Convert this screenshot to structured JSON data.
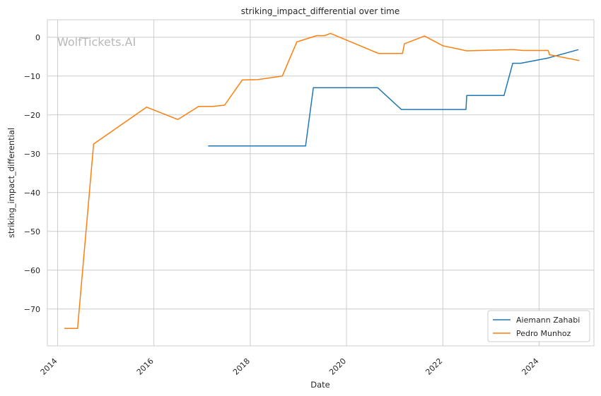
{
  "chart_data": {
    "type": "line",
    "title": "striking_impact_differential over time",
    "xlabel": "Date",
    "ylabel": "striking_impact_differential",
    "watermark": "WolfTickets.AI",
    "xlim": [
      "2013-10-15",
      "2025-02-20"
    ],
    "ylim": [
      -79.5,
      4.5
    ],
    "x_ticks": [
      {
        "date": "2014-01-01",
        "label": "2014"
      },
      {
        "date": "2016-01-01",
        "label": "2016"
      },
      {
        "date": "2018-01-01",
        "label": "2018"
      },
      {
        "date": "2020-01-01",
        "label": "2020"
      },
      {
        "date": "2022-01-01",
        "label": "2022"
      },
      {
        "date": "2024-01-01",
        "label": "2024"
      }
    ],
    "y_ticks": [
      {
        "value": 0,
        "label": "0"
      },
      {
        "value": -10,
        "label": "−10"
      },
      {
        "value": -20,
        "label": "−20"
      },
      {
        "value": -30,
        "label": "−30"
      },
      {
        "value": -40,
        "label": "−40"
      },
      {
        "value": -50,
        "label": "−50"
      },
      {
        "value": -60,
        "label": "−60"
      },
      {
        "value": -70,
        "label": "−70"
      }
    ],
    "grid": true,
    "legend_position": "bottom-right",
    "series": [
      {
        "name": "Aiemann Zahabi",
        "color": "#1f77b4",
        "points": [
          [
            "2017-02-15",
            -28.0
          ],
          [
            "2019-02-25",
            -28.0
          ],
          [
            "2019-04-25",
            -13.0
          ],
          [
            "2020-08-25",
            -13.0
          ],
          [
            "2021-02-20",
            -18.6
          ],
          [
            "2022-06-25",
            -18.6
          ],
          [
            "2022-07-01",
            -15.0
          ],
          [
            "2023-04-10",
            -15.0
          ],
          [
            "2023-06-15",
            -6.7
          ],
          [
            "2023-08-15",
            -6.7
          ],
          [
            "2024-03-05",
            -5.4
          ],
          [
            "2024-10-25",
            -3.2
          ]
        ]
      },
      {
        "name": "Pedro Munhoz",
        "color": "#ff7f0e",
        "points": [
          [
            "2014-02-20",
            -75.0
          ],
          [
            "2014-06-01",
            -75.0
          ],
          [
            "2014-10-01",
            -27.5
          ],
          [
            "2015-11-07",
            -18.0
          ],
          [
            "2016-07-01",
            -21.2
          ],
          [
            "2016-12-05",
            -17.8
          ],
          [
            "2017-03-20",
            -17.8
          ],
          [
            "2017-06-20",
            -17.5
          ],
          [
            "2017-11-01",
            -11.0
          ],
          [
            "2018-03-01",
            -10.9
          ],
          [
            "2018-09-01",
            -10.0
          ],
          [
            "2018-12-20",
            -1.2
          ],
          [
            "2019-05-20",
            0.4
          ],
          [
            "2019-07-20",
            0.4
          ],
          [
            "2019-09-01",
            1.0
          ],
          [
            "2020-09-01",
            -4.2
          ],
          [
            "2021-03-01",
            -4.2
          ],
          [
            "2021-03-15",
            -1.7
          ],
          [
            "2021-08-15",
            0.3
          ],
          [
            "2022-01-01",
            -2.2
          ],
          [
            "2022-07-01",
            -3.5
          ],
          [
            "2023-06-20",
            -3.2
          ],
          [
            "2023-09-01",
            -3.4
          ],
          [
            "2024-03-10",
            -3.4
          ],
          [
            "2024-03-20",
            -4.5
          ],
          [
            "2024-11-01",
            -6.0
          ]
        ]
      }
    ]
  }
}
